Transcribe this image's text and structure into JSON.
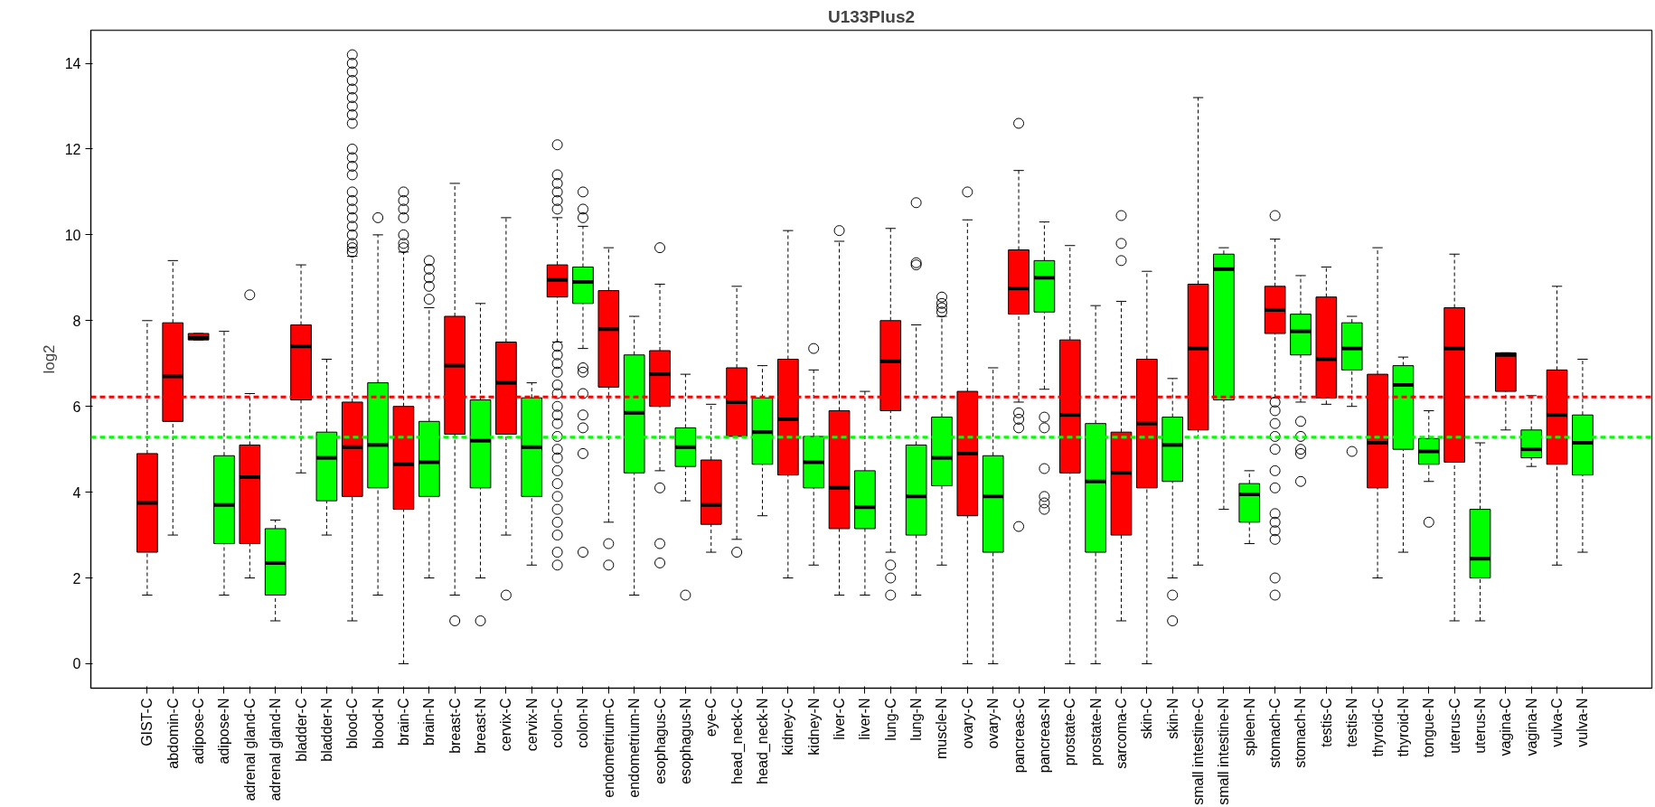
{
  "chart_data": {
    "type": "box",
    "title": "U133Plus2",
    "ylabel": "log2",
    "categories": [
      "GIST-C",
      "abdomin-C",
      "adipose-C",
      "adipose-N",
      "adrenal gland-C",
      "adrenal gland-N",
      "bladder-C",
      "bladder-N",
      "blood-C",
      "blood-N",
      "brain-C",
      "brain-N",
      "breast-C",
      "breast-N",
      "cervix-C",
      "cervix-N",
      "colon-C",
      "colon-N",
      "endometrium-C",
      "endometrium-N",
      "esophagus-C",
      "esophagus-N",
      "eye-C",
      "head_neck-C",
      "head_neck-N",
      "kidney-C",
      "kidney-N",
      "liver-C",
      "liver-N",
      "lung-C",
      "lung-N",
      "muscle-N",
      "ovary-C",
      "ovary-N",
      "pancreas-C",
      "pancreas-N",
      "prostate-C",
      "prostate-N",
      "sarcoma-C",
      "skin-C",
      "skin-N",
      "small intestine-C",
      "small intestine-N",
      "spleen-N",
      "stomach-C",
      "stomach-N",
      "testis-C",
      "testis-N",
      "thyroid-C",
      "thyroid-N",
      "tongue-N",
      "uterus-C",
      "uterus-N",
      "vagina-C",
      "vagina-N",
      "vulva-C",
      "vulva-N"
    ],
    "colors": [
      "#ff0000",
      "#ff0000",
      "#ff0000",
      "#00ff00",
      "#ff0000",
      "#00ff00",
      "#ff0000",
      "#00ff00",
      "#ff0000",
      "#00ff00",
      "#ff0000",
      "#00ff00",
      "#ff0000",
      "#00ff00",
      "#ff0000",
      "#00ff00",
      "#ff0000",
      "#00ff00",
      "#ff0000",
      "#00ff00",
      "#ff0000",
      "#00ff00",
      "#ff0000",
      "#ff0000",
      "#00ff00",
      "#ff0000",
      "#00ff00",
      "#ff0000",
      "#00ff00",
      "#ff0000",
      "#00ff00",
      "#00ff00",
      "#ff0000",
      "#00ff00",
      "#ff0000",
      "#00ff00",
      "#ff0000",
      "#00ff00",
      "#ff0000",
      "#ff0000",
      "#00ff00",
      "#ff0000",
      "#00ff00",
      "#00ff00",
      "#ff0000",
      "#00ff00",
      "#ff0000",
      "#00ff00",
      "#ff0000",
      "#00ff00",
      "#00ff00",
      "#ff0000",
      "#00ff00",
      "#ff0000",
      "#00ff00",
      "#ff0000",
      "#00ff00"
    ],
    "boxes": [
      {
        "low": 1.6,
        "q1": 2.6,
        "median": 3.75,
        "q3": 4.9,
        "high": 8.0
      },
      {
        "low": 3.0,
        "q1": 5.65,
        "median": 6.7,
        "q3": 7.95,
        "high": 9.4
      },
      {
        "low": 7.55,
        "q1": 7.55,
        "median": 7.6,
        "q3": 7.7,
        "high": 7.7
      },
      {
        "low": 1.6,
        "q1": 2.8,
        "median": 3.7,
        "q3": 4.85,
        "high": 7.75
      },
      {
        "low": 2.0,
        "q1": 2.8,
        "median": 4.35,
        "q3": 5.1,
        "high": 6.3,
        "outliers": [
          8.6
        ]
      },
      {
        "low": 1.0,
        "q1": 1.6,
        "median": 2.35,
        "q3": 3.15,
        "high": 3.35
      },
      {
        "low": 4.45,
        "q1": 6.15,
        "median": 7.4,
        "q3": 7.9,
        "high": 9.3
      },
      {
        "low": 3.0,
        "q1": 3.8,
        "median": 4.8,
        "q3": 5.4,
        "high": 7.1
      },
      {
        "low": 1.0,
        "q1": 3.9,
        "median": 5.05,
        "q3": 6.1,
        "high": 9.5,
        "outliers": [
          9.6,
          9.7,
          9.8,
          10.0,
          10.2,
          10.4,
          10.6,
          10.8,
          11.0,
          11.4,
          11.6,
          11.8,
          12.0,
          12.6,
          12.8,
          13.0,
          13.2,
          13.4,
          13.6,
          13.8,
          14.0,
          14.2
        ]
      },
      {
        "low": 1.6,
        "q1": 4.1,
        "median": 5.1,
        "q3": 6.55,
        "high": 10.0,
        "outliers": [
          10.4
        ]
      },
      {
        "low": 0.0,
        "q1": 3.6,
        "median": 4.65,
        "q3": 6.0,
        "high": 9.6,
        "outliers": [
          9.7,
          9.8,
          10.0,
          10.4,
          10.6,
          10.8,
          11.0
        ]
      },
      {
        "low": 2.0,
        "q1": 3.9,
        "median": 4.7,
        "q3": 5.65,
        "high": 8.3,
        "outliers": [
          8.5,
          8.8,
          9.0,
          9.2,
          9.4
        ]
      },
      {
        "low": 1.6,
        "q1": 5.35,
        "median": 6.95,
        "q3": 8.1,
        "high": 11.2,
        "outliers": [
          1.0
        ]
      },
      {
        "low": 2.0,
        "q1": 4.1,
        "median": 5.2,
        "q3": 6.15,
        "high": 8.4,
        "outliers": [
          1.0
        ]
      },
      {
        "low": 3.0,
        "q1": 5.35,
        "median": 6.55,
        "q3": 7.5,
        "high": 10.4,
        "outliers": [
          1.6
        ]
      },
      {
        "low": 2.3,
        "q1": 3.9,
        "median": 5.05,
        "q3": 6.2,
        "high": 6.55
      },
      {
        "low": 7.5,
        "q1": 8.55,
        "median": 8.95,
        "q3": 9.3,
        "high": 10.4,
        "outliers": [
          10.6,
          10.8,
          11.0,
          11.2,
          11.4,
          12.1,
          7.4,
          7.2,
          7.0,
          6.8,
          6.5,
          6.3,
          6.0,
          5.8,
          5.6,
          5.3,
          5.0,
          4.8,
          4.5,
          4.2,
          3.9,
          3.6,
          3.3,
          3.0,
          2.6,
          2.3
        ]
      },
      {
        "low": 7.35,
        "q1": 8.4,
        "median": 8.9,
        "q3": 9.25,
        "high": 10.2,
        "outliers": [
          10.4,
          10.6,
          11.0,
          6.9,
          6.8,
          6.3,
          5.8,
          5.5,
          4.9,
          2.6
        ]
      },
      {
        "low": 3.3,
        "q1": 6.45,
        "median": 7.8,
        "q3": 8.7,
        "high": 9.7,
        "outliers": [
          2.8,
          2.3
        ]
      },
      {
        "low": 1.6,
        "q1": 4.45,
        "median": 5.85,
        "q3": 7.2,
        "high": 8.1
      },
      {
        "low": 4.5,
        "q1": 6.0,
        "median": 6.75,
        "q3": 7.3,
        "high": 8.85,
        "outliers": [
          9.7,
          4.1,
          2.8,
          2.35
        ]
      },
      {
        "low": 3.8,
        "q1": 4.6,
        "median": 5.05,
        "q3": 5.5,
        "high": 6.75,
        "outliers": [
          1.6
        ]
      },
      {
        "low": 2.6,
        "q1": 3.25,
        "median": 3.7,
        "q3": 4.75,
        "high": 6.05
      },
      {
        "low": 2.9,
        "q1": 5.3,
        "median": 6.1,
        "q3": 6.9,
        "high": 8.8,
        "outliers": [
          2.6
        ]
      },
      {
        "low": 3.45,
        "q1": 4.65,
        "median": 5.4,
        "q3": 6.2,
        "high": 6.95
      },
      {
        "low": 2.0,
        "q1": 4.4,
        "median": 5.7,
        "q3": 7.1,
        "high": 10.1
      },
      {
        "low": 2.3,
        "q1": 4.1,
        "median": 4.7,
        "q3": 5.3,
        "high": 6.85,
        "outliers": [
          7.35
        ]
      },
      {
        "low": 1.6,
        "q1": 3.15,
        "median": 4.1,
        "q3": 5.9,
        "high": 9.85,
        "outliers": [
          10.1
        ]
      },
      {
        "low": 1.6,
        "q1": 3.15,
        "median": 3.65,
        "q3": 4.5,
        "high": 6.35
      },
      {
        "low": 2.6,
        "q1": 5.9,
        "median": 7.05,
        "q3": 8.0,
        "high": 10.15,
        "outliers": [
          2.3,
          2.0,
          1.6
        ]
      },
      {
        "low": 1.6,
        "q1": 3.0,
        "median": 3.9,
        "q3": 5.1,
        "high": 7.9,
        "outliers": [
          9.3,
          9.35,
          10.75
        ]
      },
      {
        "low": 2.3,
        "q1": 4.15,
        "median": 4.8,
        "q3": 5.75,
        "high": 8.1,
        "outliers": [
          8.2,
          8.3,
          8.4,
          8.55
        ]
      },
      {
        "low": 0.0,
        "q1": 3.45,
        "median": 4.9,
        "q3": 6.35,
        "high": 10.35,
        "outliers": [
          11.0
        ]
      },
      {
        "low": 0.0,
        "q1": 2.6,
        "median": 3.9,
        "q3": 4.85,
        "high": 6.9
      },
      {
        "low": 6.1,
        "q1": 8.15,
        "median": 8.75,
        "q3": 9.65,
        "high": 11.5,
        "outliers": [
          12.6,
          5.85,
          5.7,
          5.5,
          3.2
        ]
      },
      {
        "low": 6.4,
        "q1": 8.2,
        "median": 9.0,
        "q3": 9.4,
        "high": 10.3,
        "outliers": [
          5.75,
          5.5,
          4.55,
          3.9,
          3.75,
          3.6
        ]
      },
      {
        "low": 0.0,
        "q1": 4.45,
        "median": 5.8,
        "q3": 7.55,
        "high": 9.75
      },
      {
        "low": 0.0,
        "q1": 2.6,
        "median": 4.25,
        "q3": 5.6,
        "high": 8.35
      },
      {
        "low": 1.0,
        "q1": 3.0,
        "median": 4.45,
        "q3": 5.4,
        "high": 8.45,
        "outliers": [
          9.4,
          9.8,
          10.45
        ]
      },
      {
        "low": 0.0,
        "q1": 4.1,
        "median": 5.6,
        "q3": 7.1,
        "high": 9.15
      },
      {
        "low": 2.0,
        "q1": 4.25,
        "median": 5.1,
        "q3": 5.75,
        "high": 6.65,
        "outliers": [
          1.6,
          1.0
        ]
      },
      {
        "low": 2.3,
        "q1": 5.45,
        "median": 7.35,
        "q3": 8.85,
        "high": 13.2
      },
      {
        "low": 3.6,
        "q1": 6.15,
        "median": 9.2,
        "q3": 9.55,
        "high": 9.7
      },
      {
        "low": 2.8,
        "q1": 3.3,
        "median": 3.95,
        "q3": 4.2,
        "high": 4.5
      },
      {
        "low": 6.2,
        "q1": 7.7,
        "median": 8.25,
        "q3": 8.8,
        "high": 9.9,
        "outliers": [
          10.45,
          6.1,
          5.9,
          5.6,
          5.3,
          5.0,
          4.5,
          4.1,
          3.5,
          3.3,
          3.1,
          2.9,
          2.0,
          1.6
        ]
      },
      {
        "low": 6.1,
        "q1": 7.2,
        "median": 7.75,
        "q3": 8.15,
        "high": 9.05,
        "outliers": [
          5.65,
          5.3,
          5.0,
          4.9,
          4.25
        ]
      },
      {
        "low": 6.05,
        "q1": 6.2,
        "median": 7.1,
        "q3": 8.55,
        "high": 9.25
      },
      {
        "low": 6.0,
        "q1": 6.85,
        "median": 7.35,
        "q3": 7.95,
        "high": 8.1,
        "outliers": [
          4.95
        ]
      },
      {
        "low": 2.0,
        "q1": 4.1,
        "median": 5.15,
        "q3": 6.75,
        "high": 9.7
      },
      {
        "low": 2.6,
        "q1": 5.0,
        "median": 6.5,
        "q3": 6.95,
        "high": 7.15
      },
      {
        "low": 4.25,
        "q1": 4.65,
        "median": 4.95,
        "q3": 5.25,
        "high": 5.9,
        "outliers": [
          3.3
        ]
      },
      {
        "low": 1.0,
        "q1": 4.7,
        "median": 7.35,
        "q3": 8.3,
        "high": 9.55
      },
      {
        "low": 1.0,
        "q1": 2.0,
        "median": 2.45,
        "q3": 3.6,
        "high": 5.15
      },
      {
        "low": 5.45,
        "q1": 6.35,
        "median": 7.2,
        "q3": 7.25,
        "high": 7.25
      },
      {
        "low": 4.6,
        "q1": 4.8,
        "median": 5.0,
        "q3": 5.45,
        "high": 6.25
      },
      {
        "low": 2.3,
        "q1": 4.65,
        "median": 5.8,
        "q3": 6.85,
        "high": 8.8
      },
      {
        "low": 2.6,
        "q1": 4.4,
        "median": 5.15,
        "q3": 5.8,
        "high": 7.1
      }
    ],
    "ylim": [
      -0.57,
      14.77
    ],
    "yticks": [
      0,
      2,
      4,
      6,
      8,
      10,
      12,
      14
    ],
    "ref_lines": [
      {
        "axis": "y",
        "value": 6.22,
        "color": "#ff0000",
        "line_style": "dashed"
      },
      {
        "axis": "y",
        "value": 5.28,
        "color": "#00ff00",
        "line_style": "dashed"
      }
    ]
  }
}
